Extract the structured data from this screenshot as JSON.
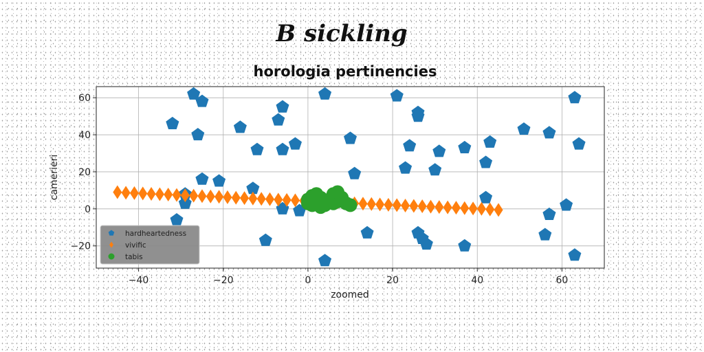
{
  "chart_data": {
    "type": "scatter",
    "suptitle": "B sickling",
    "title": "horologia pertinencies",
    "xlabel": "zoomed",
    "ylabel": "camerieri",
    "xlim": [
      -50,
      70
    ],
    "ylim": [
      -32,
      66
    ],
    "xticks": [
      -40,
      -20,
      0,
      20,
      40,
      60
    ],
    "yticks": [
      -20,
      0,
      20,
      40,
      60
    ],
    "grid": true,
    "legend_position": "lower-left",
    "series": [
      {
        "name": "hardheartedness",
        "marker": "pentagon",
        "color": "#1f77b4",
        "points": [
          [
            -27,
            62
          ],
          [
            -25,
            58
          ],
          [
            -32,
            46
          ],
          [
            -26,
            40
          ],
          [
            -16,
            44
          ],
          [
            -6,
            55
          ],
          [
            -7,
            48
          ],
          [
            -6,
            32
          ],
          [
            -12,
            32
          ],
          [
            -3,
            35
          ],
          [
            4,
            62
          ],
          [
            21,
            61
          ],
          [
            26,
            52
          ],
          [
            26,
            50
          ],
          [
            10,
            38
          ],
          [
            24,
            34
          ],
          [
            31,
            31
          ],
          [
            37,
            33
          ],
          [
            43,
            36
          ],
          [
            51,
            43
          ],
          [
            57,
            41
          ],
          [
            63,
            60
          ],
          [
            64,
            35
          ],
          [
            23,
            22
          ],
          [
            30,
            21
          ],
          [
            42,
            25
          ],
          [
            11,
            19
          ],
          [
            -25,
            16
          ],
          [
            -21,
            15
          ],
          [
            -13,
            11
          ],
          [
            -29,
            8
          ],
          [
            -29,
            3
          ],
          [
            -31,
            -6
          ],
          [
            -10,
            -17
          ],
          [
            -6,
            0
          ],
          [
            -2,
            -1
          ],
          [
            4,
            -28
          ],
          [
            14,
            -13
          ],
          [
            26,
            -13
          ],
          [
            27,
            -16
          ],
          [
            28,
            -19
          ],
          [
            37,
            -20
          ],
          [
            42,
            6
          ],
          [
            56,
            -14
          ],
          [
            57,
            -3
          ],
          [
            61,
            2
          ],
          [
            63,
            -25
          ]
        ]
      },
      {
        "name": "vivific",
        "marker": "thin-diamond",
        "color": "#ff7f0e",
        "points": [
          [
            -45,
            9
          ],
          [
            -43,
            8.7
          ],
          [
            -41,
            8.5
          ],
          [
            -39,
            8.3
          ],
          [
            -37,
            8.1
          ],
          [
            -35,
            7.9
          ],
          [
            -33,
            7.7
          ],
          [
            -31,
            7.5
          ],
          [
            -29,
            7.3
          ],
          [
            -27,
            7.1
          ],
          [
            -25,
            6.9
          ],
          [
            -23,
            6.7
          ],
          [
            -21,
            6.5
          ],
          [
            -19,
            6.3
          ],
          [
            -17,
            6.0
          ],
          [
            -15,
            5.8
          ],
          [
            -13,
            5.6
          ],
          [
            -11,
            5.4
          ],
          [
            -9,
            5.2
          ],
          [
            -7,
            5.0
          ],
          [
            -5,
            4.8
          ],
          [
            -3,
            4.6
          ],
          [
            -1,
            4.4
          ],
          [
            1,
            4.2
          ],
          [
            3,
            4.0
          ],
          [
            5,
            3.8
          ],
          [
            7,
            3.6
          ],
          [
            9,
            3.4
          ],
          [
            11,
            3.0
          ],
          [
            13,
            2.8
          ],
          [
            15,
            2.6
          ],
          [
            17,
            2.4
          ],
          [
            19,
            2.2
          ],
          [
            21,
            2.0
          ],
          [
            23,
            1.8
          ],
          [
            25,
            1.6
          ],
          [
            27,
            1.4
          ],
          [
            29,
            1.2
          ],
          [
            31,
            1.0
          ],
          [
            33,
            0.8
          ],
          [
            35,
            0.6
          ],
          [
            37,
            0.4
          ],
          [
            39,
            0.2
          ],
          [
            41,
            0.0
          ],
          [
            43,
            -0.3
          ],
          [
            45,
            -0.6
          ]
        ]
      },
      {
        "name": "tabis",
        "marker": "circle",
        "color": "#2ca02c",
        "points": [
          [
            0,
            5
          ],
          [
            1,
            7
          ],
          [
            2,
            3
          ],
          [
            3,
            6
          ],
          [
            4,
            2
          ],
          [
            5,
            5
          ],
          [
            6,
            8
          ],
          [
            7,
            4
          ],
          [
            8,
            6
          ],
          [
            9,
            3
          ],
          [
            10,
            2
          ],
          [
            1,
            2
          ],
          [
            2,
            8
          ],
          [
            4,
            4
          ],
          [
            6,
            3
          ],
          [
            7,
            9
          ],
          [
            0,
            3
          ],
          [
            3,
            1
          ]
        ]
      }
    ]
  }
}
